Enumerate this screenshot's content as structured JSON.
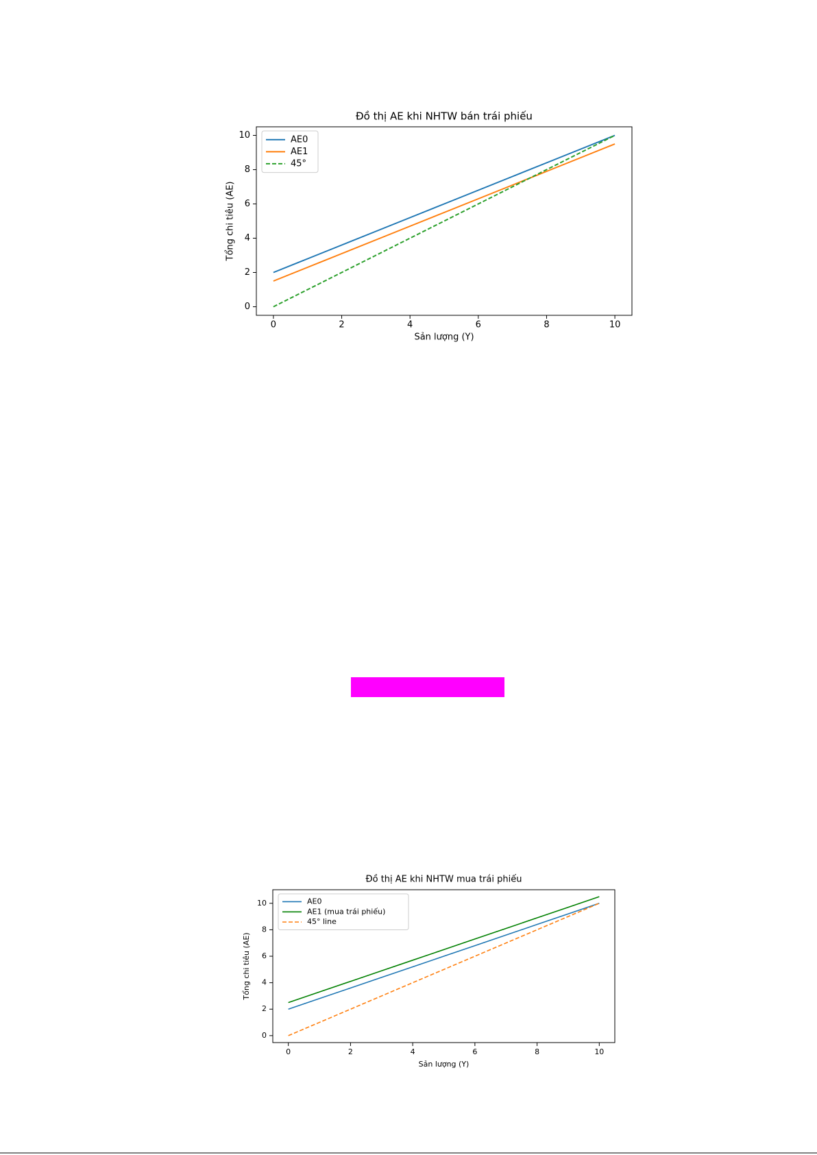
{
  "chart_data": [
    {
      "type": "line",
      "title": "Đồ thị AE khi NHTW bán trái phiếu",
      "x_label": "Sản lượng (Y)",
      "y_label": "Tổng chi tiêu (AE)",
      "x": [
        0,
        1,
        2,
        3,
        4,
        5,
        6,
        7,
        8,
        9,
        10
      ],
      "series": [
        {
          "name": "AE0",
          "color": "#1f77b4",
          "values": [
            2,
            2.8,
            3.6,
            4.4,
            5.2,
            6,
            6.8,
            7.6,
            8.4,
            9.2,
            10
          ]
        },
        {
          "name": "AE1",
          "color": "#ff7f0e",
          "values": [
            1.5,
            2.3,
            3.1,
            3.9,
            4.7,
            5.5,
            6.3,
            7.1,
            7.9,
            8.7,
            9.5
          ]
        },
        {
          "name": "45°",
          "color": "#2ca02c",
          "dashed": true,
          "values": [
            0,
            1,
            2,
            3,
            4,
            5,
            6,
            7,
            8,
            9,
            10
          ]
        }
      ],
      "xlim": [
        -0.5,
        10.5
      ],
      "ylim": [
        -0.5,
        10.5
      ],
      "xticks": [
        0,
        2,
        4,
        6,
        8,
        10
      ],
      "yticks": [
        0,
        2,
        4,
        6,
        8,
        10
      ],
      "legend": "upper left"
    },
    {
      "type": "line",
      "title": "Đồ thị AE khi NHTW mua trái phiếu",
      "x_label": "Sản lượng (Y)",
      "y_label": "Tổng chi tiêu (AE)",
      "x": [
        0,
        1,
        2,
        3,
        4,
        5,
        6,
        7,
        8,
        9,
        10
      ],
      "series": [
        {
          "name": "AE0",
          "color": "#1f77b4",
          "values": [
            2,
            2.8,
            3.6,
            4.4,
            5.2,
            6,
            6.8,
            7.6,
            8.4,
            9.2,
            10
          ]
        },
        {
          "name": "AE1 (mua trái phiếu)",
          "color": "#008000",
          "values": [
            2.5,
            3.3,
            4.1,
            4.9,
            5.7,
            6.5,
            7.3,
            8.1,
            8.9,
            9.7,
            10.5
          ]
        },
        {
          "name": "45° line",
          "color": "#ff7f0e",
          "dashed": true,
          "values": [
            0,
            1,
            2,
            3,
            4,
            5,
            6,
            7,
            8,
            9,
            10
          ]
        }
      ],
      "xlim": [
        -0.5,
        10.5
      ],
      "ylim": [
        -0.525,
        11.025
      ],
      "xticks": [
        0,
        2,
        4,
        6,
        8,
        10
      ],
      "yticks": [
        0,
        2,
        4,
        6,
        8,
        10
      ],
      "legend": "upper left"
    }
  ]
}
